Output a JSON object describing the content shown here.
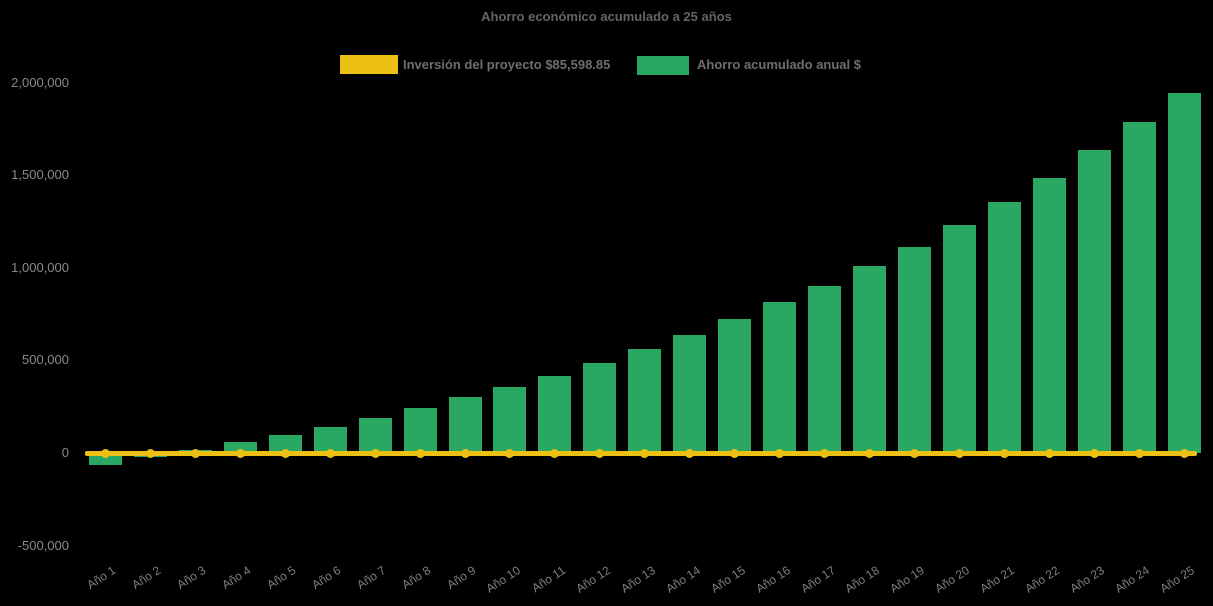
{
  "chart_data": {
    "type": "bar",
    "title": "Ahorro económico acumulado a 25 años",
    "categories": [
      "Año 1",
      "Año 2",
      "Año 3",
      "Año 4",
      "Año 5",
      "Año 6",
      "Año 7",
      "Año 8",
      "Año 9",
      "Año 10",
      "Año 11",
      "Año 12",
      "Año 13",
      "Año 14",
      "Año 15",
      "Año 16",
      "Año 17",
      "Año 18",
      "Año 19",
      "Año 20",
      "Año 21",
      "Año 22",
      "Año 23",
      "Año 24",
      "Año 25"
    ],
    "series": [
      {
        "name": "Inversión del proyecto $85,598.85",
        "type": "line",
        "marker": "circle",
        "color": "#ecc114",
        "stated_value": 85598.85,
        "values": [
          0,
          0,
          0,
          0,
          0,
          0,
          0,
          0,
          0,
          0,
          0,
          0,
          0,
          0,
          0,
          0,
          0,
          0,
          0,
          0,
          0,
          0,
          0,
          0,
          0
        ]
      },
      {
        "name": "Ahorro acumulado anual $",
        "type": "bar",
        "color": "#2aa762",
        "values": [
          -65000,
          -20000,
          15000,
          57000,
          95000,
          140000,
          190000,
          242000,
          300000,
          357000,
          415000,
          488000,
          560000,
          637000,
          722000,
          815000,
          903000,
          1008000,
          1115000,
          1232000,
          1355000,
          1487000,
          1637000,
          1790000,
          1946000
        ]
      }
    ],
    "xlabel": "",
    "ylabel": "",
    "ylim": [
      -500000,
      2000000
    ],
    "yticks": [
      2000000,
      1500000,
      1000000,
      500000,
      0,
      -500000
    ],
    "ytick_labels": [
      "2,000,000",
      "1,500,000",
      "1,000,000",
      "500,000",
      "0",
      "-500,000"
    ],
    "grid": false,
    "legend_position": "top-center",
    "background_color": "#000000"
  }
}
